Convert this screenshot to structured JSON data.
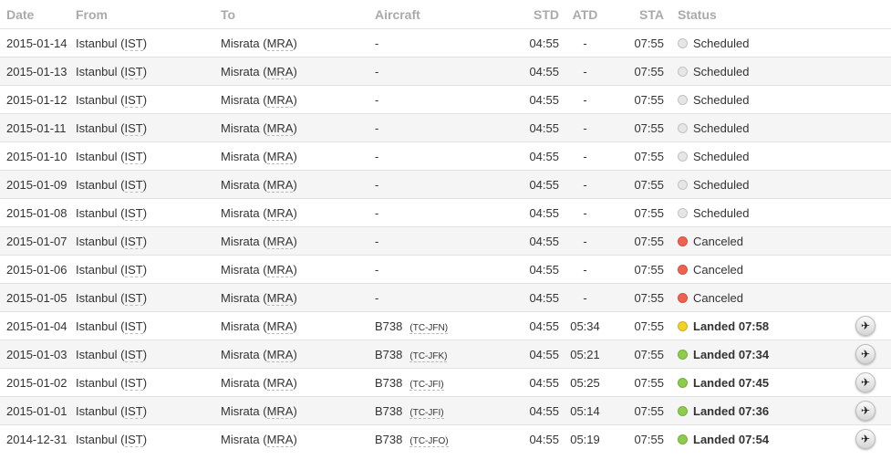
{
  "headers": {
    "date": "Date",
    "from": "From",
    "to": "To",
    "aircraft": "Aircraft",
    "std": "STD",
    "atd": "ATD",
    "sta": "STA",
    "status": "Status"
  },
  "colors": {
    "scheduled": "#e6e6e6",
    "canceled": "#f0624d",
    "landed_late": "#f2d129",
    "landed": "#8ccd4b"
  },
  "rows": [
    {
      "date": "2015-01-14",
      "from": "Istanbul",
      "from_code": "IST",
      "to": "Misrata",
      "to_code": "MRA",
      "aircraft": "-",
      "reg": "",
      "std": "04:55",
      "atd": "-",
      "sta": "07:55",
      "status": "Scheduled",
      "state": "scheduled"
    },
    {
      "date": "2015-01-13",
      "from": "Istanbul",
      "from_code": "IST",
      "to": "Misrata",
      "to_code": "MRA",
      "aircraft": "-",
      "reg": "",
      "std": "04:55",
      "atd": "-",
      "sta": "07:55",
      "status": "Scheduled",
      "state": "scheduled"
    },
    {
      "date": "2015-01-12",
      "from": "Istanbul",
      "from_code": "IST",
      "to": "Misrata",
      "to_code": "MRA",
      "aircraft": "-",
      "reg": "",
      "std": "04:55",
      "atd": "-",
      "sta": "07:55",
      "status": "Scheduled",
      "state": "scheduled"
    },
    {
      "date": "2015-01-11",
      "from": "Istanbul",
      "from_code": "IST",
      "to": "Misrata",
      "to_code": "MRA",
      "aircraft": "-",
      "reg": "",
      "std": "04:55",
      "atd": "-",
      "sta": "07:55",
      "status": "Scheduled",
      "state": "scheduled"
    },
    {
      "date": "2015-01-10",
      "from": "Istanbul",
      "from_code": "IST",
      "to": "Misrata",
      "to_code": "MRA",
      "aircraft": "-",
      "reg": "",
      "std": "04:55",
      "atd": "-",
      "sta": "07:55",
      "status": "Scheduled",
      "state": "scheduled"
    },
    {
      "date": "2015-01-09",
      "from": "Istanbul",
      "from_code": "IST",
      "to": "Misrata",
      "to_code": "MRA",
      "aircraft": "-",
      "reg": "",
      "std": "04:55",
      "atd": "-",
      "sta": "07:55",
      "status": "Scheduled",
      "state": "scheduled"
    },
    {
      "date": "2015-01-08",
      "from": "Istanbul",
      "from_code": "IST",
      "to": "Misrata",
      "to_code": "MRA",
      "aircraft": "-",
      "reg": "",
      "std": "04:55",
      "atd": "-",
      "sta": "07:55",
      "status": "Scheduled",
      "state": "scheduled"
    },
    {
      "date": "2015-01-07",
      "from": "Istanbul",
      "from_code": "IST",
      "to": "Misrata",
      "to_code": "MRA",
      "aircraft": "-",
      "reg": "",
      "std": "04:55",
      "atd": "-",
      "sta": "07:55",
      "status": "Canceled",
      "state": "canceled"
    },
    {
      "date": "2015-01-06",
      "from": "Istanbul",
      "from_code": "IST",
      "to": "Misrata",
      "to_code": "MRA",
      "aircraft": "-",
      "reg": "",
      "std": "04:55",
      "atd": "-",
      "sta": "07:55",
      "status": "Canceled",
      "state": "canceled"
    },
    {
      "date": "2015-01-05",
      "from": "Istanbul",
      "from_code": "IST",
      "to": "Misrata",
      "to_code": "MRA",
      "aircraft": "-",
      "reg": "",
      "std": "04:55",
      "atd": "-",
      "sta": "07:55",
      "status": "Canceled",
      "state": "canceled"
    },
    {
      "date": "2015-01-04",
      "from": "Istanbul",
      "from_code": "IST",
      "to": "Misrata",
      "to_code": "MRA",
      "aircraft": "B738",
      "reg": "(TC-JFN)",
      "std": "04:55",
      "atd": "05:34",
      "sta": "07:55",
      "status": "Landed 07:58",
      "state": "landed_late",
      "icon": "airplane-icon"
    },
    {
      "date": "2015-01-03",
      "from": "Istanbul",
      "from_code": "IST",
      "to": "Misrata",
      "to_code": "MRA",
      "aircraft": "B738",
      "reg": "(TC-JFK)",
      "std": "04:55",
      "atd": "05:21",
      "sta": "07:55",
      "status": "Landed 07:34",
      "state": "landed",
      "icon": "airplane-icon"
    },
    {
      "date": "2015-01-02",
      "from": "Istanbul",
      "from_code": "IST",
      "to": "Misrata",
      "to_code": "MRA",
      "aircraft": "B738",
      "reg": "(TC-JFI)",
      "std": "04:55",
      "atd": "05:25",
      "sta": "07:55",
      "status": "Landed 07:45",
      "state": "landed",
      "icon": "airplane-icon"
    },
    {
      "date": "2015-01-01",
      "from": "Istanbul",
      "from_code": "IST",
      "to": "Misrata",
      "to_code": "MRA",
      "aircraft": "B738",
      "reg": "(TC-JFI)",
      "std": "04:55",
      "atd": "05:14",
      "sta": "07:55",
      "status": "Landed 07:36",
      "state": "landed",
      "icon": "airplane-icon"
    },
    {
      "date": "2014-12-31",
      "from": "Istanbul",
      "from_code": "IST",
      "to": "Misrata",
      "to_code": "MRA",
      "aircraft": "B738",
      "reg": "(TC-JFO)",
      "std": "04:55",
      "atd": "05:19",
      "sta": "07:55",
      "status": "Landed 07:54",
      "state": "landed",
      "icon": "airplane-icon"
    }
  ]
}
